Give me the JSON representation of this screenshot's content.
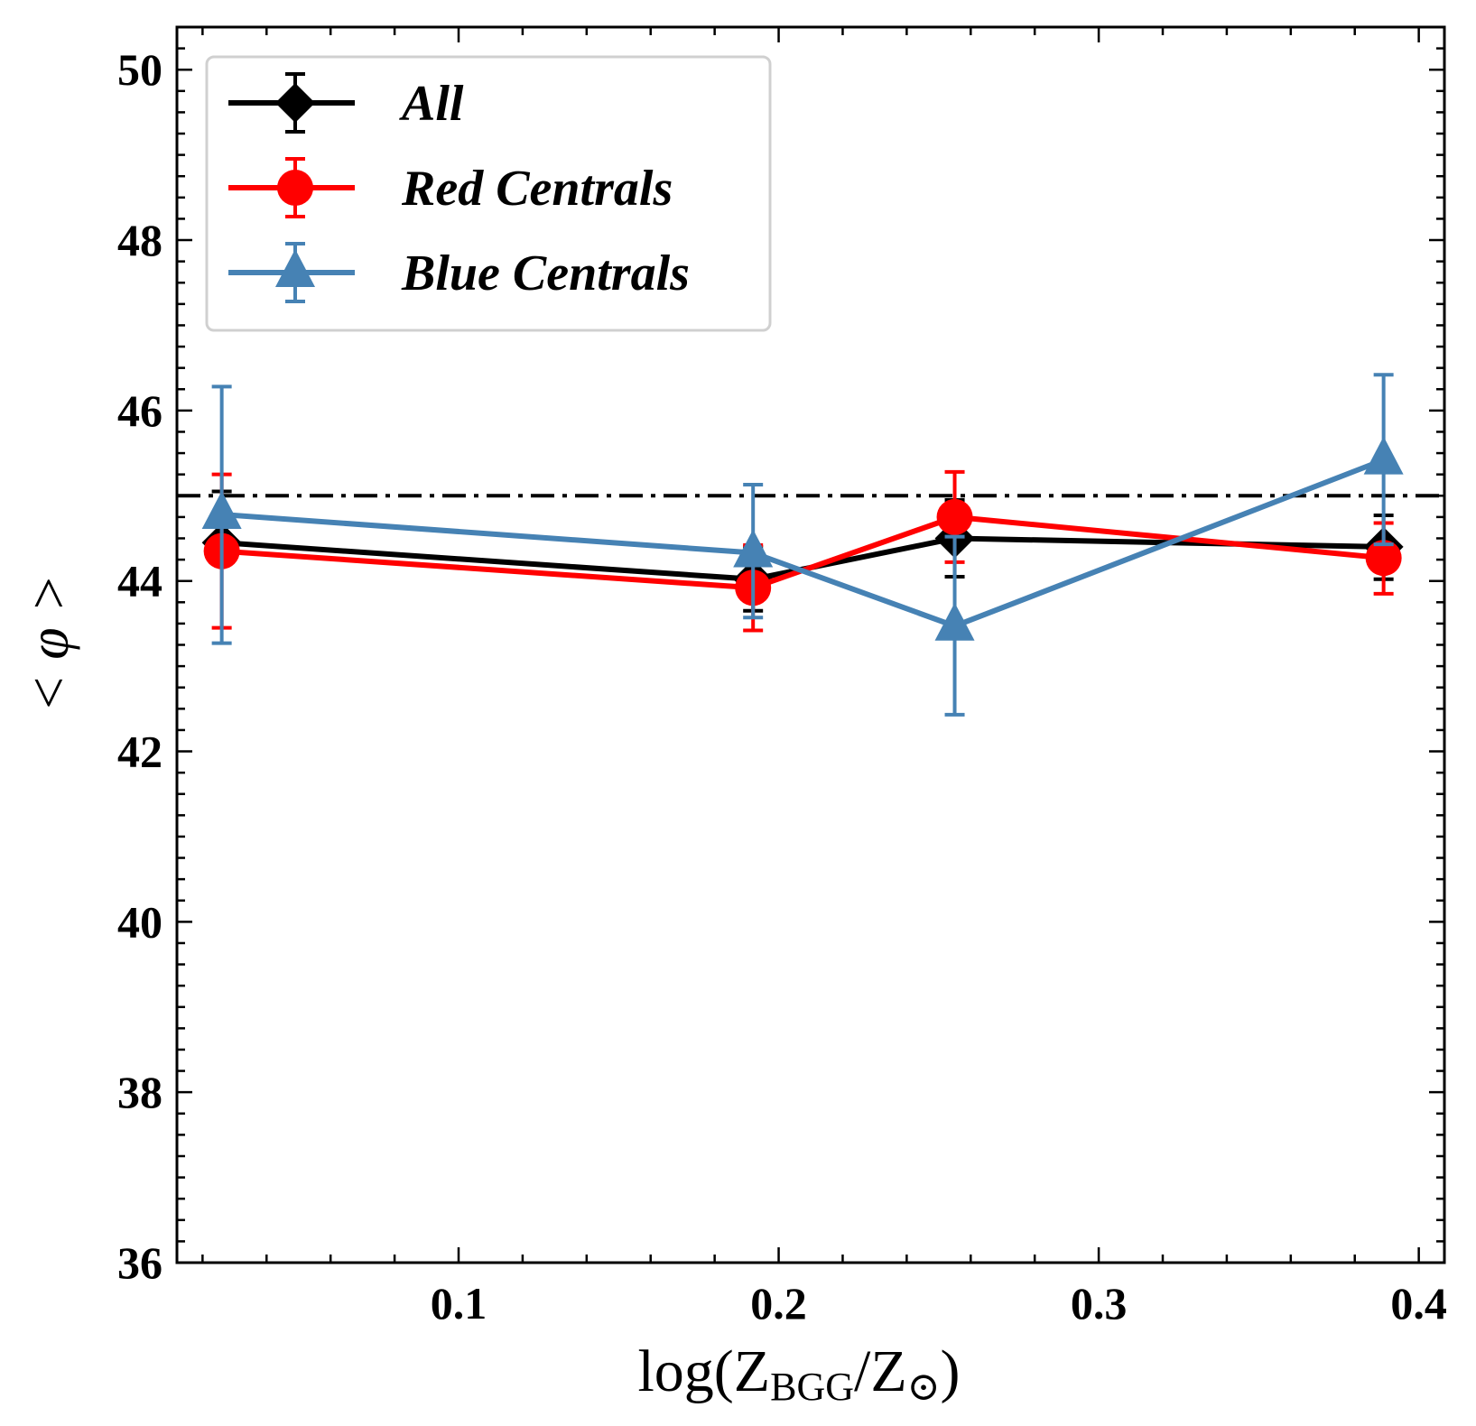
{
  "chart_data": {
    "type": "line",
    "xlabel": {
      "prefix": "log(Z",
      "sub": "BGG",
      "mid": "/Z",
      "sun": "⊙",
      "suffix": ")"
    },
    "ylabel": "< φ >",
    "xlim": [
      0.012,
      0.408
    ],
    "ylim": [
      36,
      50.5
    ],
    "x_ticks": [
      0.1,
      0.2,
      0.3,
      0.4
    ],
    "x_tick_labels": [
      "0.1",
      "0.2",
      "0.3",
      "0.4"
    ],
    "y_ticks": [
      36,
      38,
      40,
      42,
      44,
      46,
      48,
      50
    ],
    "y_tick_labels": [
      "36",
      "38",
      "40",
      "42",
      "44",
      "46",
      "48",
      "50"
    ],
    "reference_line": {
      "y": 45,
      "style": "dash-dot",
      "color": "#000000"
    },
    "grid": false,
    "legend_placement": "top-left",
    "series": [
      {
        "name": "All",
        "color": "#000000",
        "marker": "diamond",
        "x": [
          0.026,
          0.192,
          0.255,
          0.389
        ],
        "y": [
          44.45,
          44.02,
          44.5,
          44.4
        ],
        "err_low": [
          44.45,
          43.65,
          44.05,
          44.02
        ],
        "err_high": [
          45.05,
          44.4,
          44.95,
          44.77
        ]
      },
      {
        "name": "Red Centrals",
        "color": "#ff0000",
        "marker": "circle",
        "x": [
          0.026,
          0.192,
          0.255,
          0.389
        ],
        "y": [
          44.35,
          43.92,
          44.75,
          44.27
        ],
        "err_low": [
          43.45,
          43.42,
          44.22,
          43.85
        ],
        "err_high": [
          45.25,
          44.42,
          45.28,
          44.68
        ]
      },
      {
        "name": "Blue Centrals",
        "color": "#4682b4",
        "marker": "triangle",
        "x": [
          0.026,
          0.192,
          0.255,
          0.389
        ],
        "y": [
          44.78,
          44.33,
          43.47,
          45.42
        ],
        "err_low": [
          43.27,
          43.57,
          42.43,
          44.43
        ],
        "err_high": [
          46.28,
          45.13,
          44.52,
          46.42
        ]
      }
    ]
  }
}
